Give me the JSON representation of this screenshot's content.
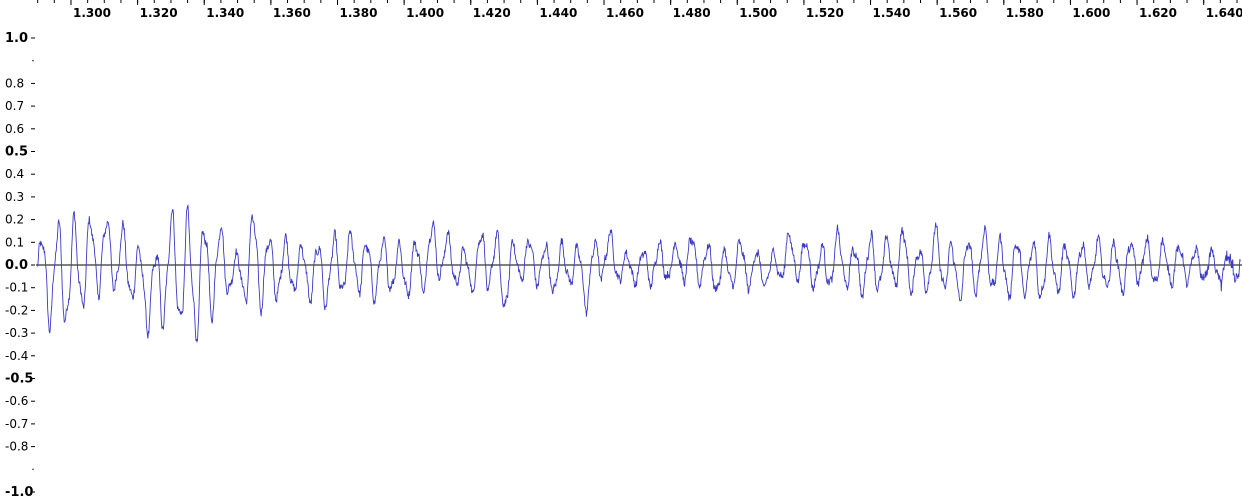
{
  "colors": {
    "waveform": "#3a3ac4",
    "zero_line": "#000000",
    "tick": "#000000",
    "background": "#ffffff"
  },
  "time_ruler": {
    "labels": [
      "1.300",
      "1.320",
      "1.340",
      "1.360",
      "1.380",
      "1.400",
      "1.420",
      "1.440",
      "1.460",
      "1.480",
      "1.500",
      "1.520",
      "1.540",
      "1.560",
      "1.580",
      "1.600",
      "1.620",
      "1.640"
    ],
    "values": [
      1.3,
      1.32,
      1.34,
      1.36,
      1.38,
      1.4,
      1.42,
      1.44,
      1.46,
      1.48,
      1.5,
      1.52,
      1.54,
      1.56,
      1.58,
      1.6,
      1.62,
      1.64
    ],
    "range": [
      1.2895,
      1.6515
    ]
  },
  "amplitude_ruler": {
    "labels": [
      "1.0",
      "0.8",
      "0.7",
      "0.6",
      "0.5",
      "0.4",
      "0.3",
      "0.2",
      "0.1",
      "0.0",
      "-0.1",
      "-0.2",
      "-0.3",
      "-0.4",
      "-0.5",
      "-0.6",
      "-0.7",
      "-0.8",
      "-1.0"
    ],
    "values": [
      1.0,
      0.8,
      0.7,
      0.6,
      0.5,
      0.4,
      0.3,
      0.2,
      0.1,
      0.0,
      -0.1,
      -0.2,
      -0.3,
      -0.4,
      -0.5,
      -0.6,
      -0.7,
      -0.8,
      -1.0
    ],
    "major": [
      "1.0",
      "0.5",
      "0.0",
      "-0.5",
      "-1.0"
    ],
    "range": [
      -1.0,
      1.0
    ]
  },
  "chart_data": {
    "type": "line",
    "xlim": [
      1.2895,
      1.6515
    ],
    "ylim": [
      -1.0,
      1.0
    ],
    "grid": false,
    "envelope_points": [
      [
        1.29,
        0.14,
        -0.21
      ],
      [
        1.295,
        0.22,
        -0.33
      ],
      [
        1.3,
        0.23,
        -0.3
      ],
      [
        1.305,
        0.24,
        -0.2
      ],
      [
        1.31,
        0.24,
        -0.12
      ],
      [
        1.315,
        0.2,
        -0.15
      ],
      [
        1.32,
        0.1,
        -0.2
      ],
      [
        1.325,
        0.09,
        -0.39
      ],
      [
        1.33,
        0.26,
        -0.22
      ],
      [
        1.335,
        0.27,
        -0.4
      ],
      [
        1.34,
        0.23,
        -0.35
      ],
      [
        1.345,
        0.2,
        -0.15
      ],
      [
        1.35,
        0.05,
        -0.15
      ],
      [
        1.355,
        0.29,
        -0.23
      ],
      [
        1.36,
        0.14,
        -0.19
      ],
      [
        1.365,
        0.13,
        -0.14
      ],
      [
        1.37,
        0.1,
        -0.15
      ],
      [
        1.375,
        0.13,
        -0.22
      ],
      [
        1.38,
        0.15,
        -0.17
      ],
      [
        1.385,
        0.16,
        -0.12
      ],
      [
        1.39,
        0.12,
        -0.18
      ],
      [
        1.395,
        0.13,
        -0.13
      ],
      [
        1.4,
        0.1,
        -0.16
      ],
      [
        1.405,
        0.14,
        -0.14
      ],
      [
        1.41,
        0.24,
        -0.08
      ],
      [
        1.415,
        0.1,
        -0.1
      ],
      [
        1.42,
        0.07,
        -0.13
      ],
      [
        1.425,
        0.24,
        -0.13
      ],
      [
        1.43,
        0.1,
        -0.24
      ],
      [
        1.435,
        0.14,
        -0.08
      ],
      [
        1.44,
        0.12,
        -0.1
      ],
      [
        1.445,
        0.09,
        -0.15
      ],
      [
        1.45,
        0.13,
        -0.1
      ],
      [
        1.455,
        0.06,
        -0.22
      ],
      [
        1.46,
        0.21,
        -0.06
      ],
      [
        1.465,
        0.07,
        -0.09
      ],
      [
        1.47,
        0.05,
        -0.09
      ],
      [
        1.475,
        0.13,
        -0.11
      ],
      [
        1.48,
        0.09,
        -0.07
      ],
      [
        1.485,
        0.15,
        -0.09
      ],
      [
        1.49,
        0.12,
        -0.1
      ],
      [
        1.495,
        0.06,
        -0.15
      ],
      [
        1.5,
        0.13,
        -0.1
      ],
      [
        1.505,
        0.08,
        -0.12
      ],
      [
        1.51,
        0.05,
        -0.11
      ],
      [
        1.515,
        0.16,
        -0.07
      ],
      [
        1.52,
        0.13,
        -0.08
      ],
      [
        1.525,
        0.09,
        -0.14
      ],
      [
        1.53,
        0.17,
        -0.1
      ],
      [
        1.535,
        0.09,
        -0.13
      ],
      [
        1.54,
        0.16,
        -0.17
      ],
      [
        1.545,
        0.13,
        -0.1
      ],
      [
        1.55,
        0.19,
        -0.13
      ],
      [
        1.555,
        0.08,
        -0.15
      ],
      [
        1.56,
        0.19,
        -0.1
      ],
      [
        1.565,
        0.1,
        -0.18
      ],
      [
        1.57,
        0.14,
        -0.16
      ],
      [
        1.575,
        0.18,
        -0.12
      ],
      [
        1.58,
        0.12,
        -0.17
      ],
      [
        1.585,
        0.13,
        -0.14
      ],
      [
        1.59,
        0.12,
        -0.18
      ],
      [
        1.595,
        0.14,
        -0.14
      ],
      [
        1.6,
        0.09,
        -0.15
      ],
      [
        1.605,
        0.12,
        -0.11
      ],
      [
        1.61,
        0.13,
        -0.12
      ],
      [
        1.615,
        0.1,
        -0.14
      ],
      [
        1.62,
        0.13,
        -0.09
      ],
      [
        1.625,
        0.12,
        -0.11
      ],
      [
        1.63,
        0.11,
        -0.1
      ],
      [
        1.635,
        0.09,
        -0.09
      ],
      [
        1.64,
        0.08,
        -0.08
      ],
      [
        1.645,
        0.06,
        -0.09
      ],
      [
        1.65,
        0.06,
        -0.08
      ]
    ]
  }
}
